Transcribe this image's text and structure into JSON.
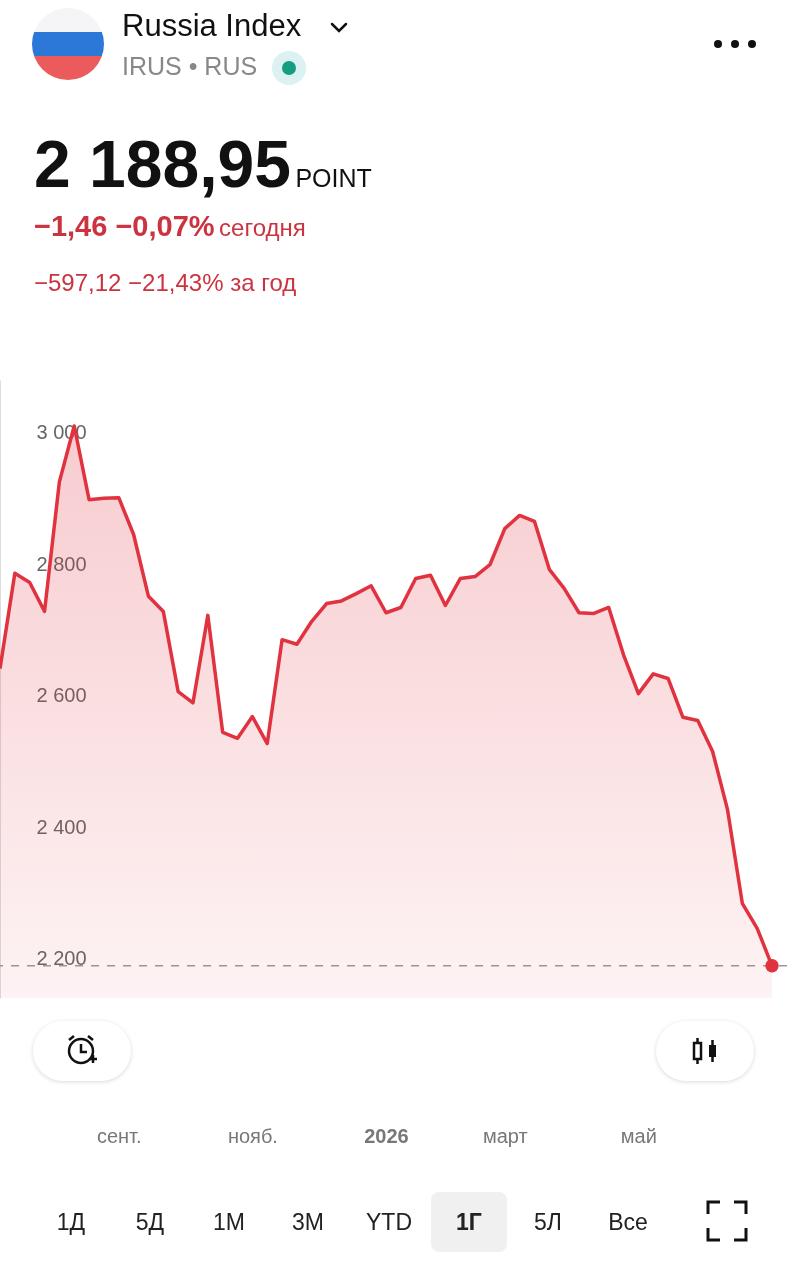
{
  "chart_data": {
    "type": "area",
    "title": "Russia Index",
    "subtitle": "IRUS • RUS",
    "annotations": [
      "2 188,95",
      "POINT",
      "−1,46 −0,07%",
      "сегодня",
      "−597,12 −21,43% за год",
      "1Д",
      "5Д",
      "1М",
      "3М",
      "YTD",
      "1Г",
      "5Л",
      "Все"
    ],
    "categories": [
      null,
      null,
      null,
      null,
      null,
      null,
      null,
      null,
      "сент.",
      null,
      null,
      null,
      null,
      null,
      null,
      null,
      null,
      "нояб.",
      null,
      null,
      null,
      null,
      null,
      null,
      null,
      null,
      "2026",
      null,
      null,
      null,
      null,
      null,
      null,
      null,
      "март",
      null,
      null,
      null,
      null,
      null,
      null,
      null,
      null,
      "май",
      null,
      null,
      null,
      null,
      null,
      null,
      null,
      null,
      null
    ],
    "series": [
      {
        "color": "#e0323f",
        "values": [
          2641,
          2786,
          2772,
          2728,
          2925,
          3010,
          2898,
          2900,
          2901,
          2845,
          2751,
          2728,
          2606,
          2589,
          2722,
          2544,
          2535,
          2568,
          2527,
          2685,
          2678,
          2713,
          2740,
          2744,
          2755,
          2767,
          2726,
          2734,
          2778,
          2783,
          2737,
          2778,
          2781,
          2799,
          2854,
          2874,
          2865,
          2792,
          2763,
          2726,
          2725,
          2734,
          2662,
          2603,
          2633,
          2626,
          2567,
          2562,
          2515,
          2427,
          2284,
          2246,
          2189
        ]
      },
      {
        "type": "scatter",
        "color": "#e0323f",
        "values": [
          null,
          null,
          null,
          null,
          null,
          null,
          null,
          null,
          null,
          null,
          null,
          null,
          null,
          null,
          null,
          null,
          null,
          null,
          null,
          null,
          null,
          null,
          null,
          null,
          null,
          null,
          null,
          null,
          null,
          null,
          null,
          null,
          null,
          null,
          null,
          null,
          null,
          null,
          null,
          null,
          null,
          null,
          null,
          null,
          null,
          null,
          null,
          null,
          null,
          null,
          null,
          null,
          2189
        ]
      }
    ],
    "ylim": [
      2140,
      3080
    ],
    "yticks": [
      {
        "value": 2200,
        "label": "2 200"
      },
      {
        "value": 2400,
        "label": "2 400"
      },
      {
        "value": 2600,
        "label": "2 600"
      },
      {
        "value": 2800,
        "label": "2 800"
      },
      {
        "value": 3000,
        "label": "3 000"
      }
    ],
    "ref_lines": [
      {
        "axis": "y",
        "value": 2189,
        "color": "#999999",
        "line_style": "dashed"
      }
    ]
  }
}
